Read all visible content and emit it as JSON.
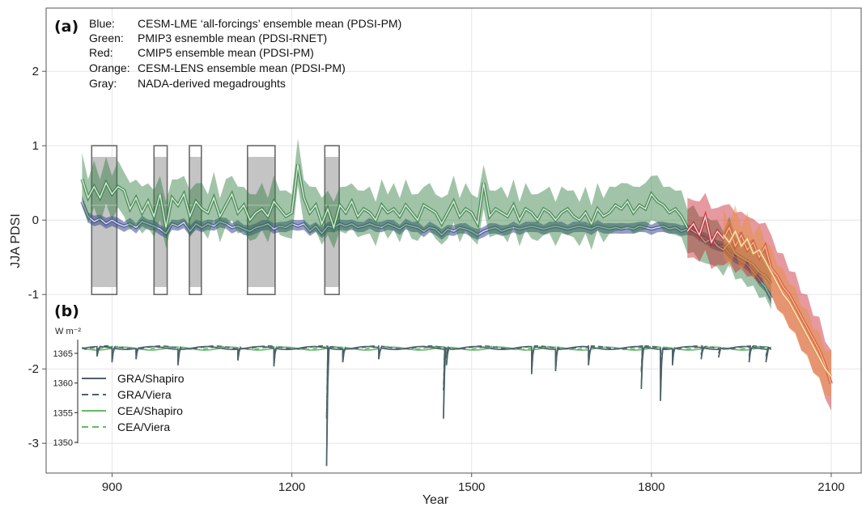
{
  "chart_data": [
    {
      "panel": "(a)",
      "type": "line",
      "xlabel": "Year",
      "ylabel": "JJA PDSI",
      "xlim": [
        790,
        2150
      ],
      "ylim": [
        -3.4,
        2.85
      ],
      "x_ticks": [
        900,
        1200,
        1500,
        1800,
        2100
      ],
      "y_ticks": [
        -3,
        -2,
        -1,
        0,
        1,
        2
      ],
      "grid": true,
      "legend_text": [
        {
          "key": "Blue:",
          "text": "CESM-LME ‘all-forcings’ ensemble mean (PDSI-PM)"
        },
        {
          "key": "Green:",
          "text": "PMIP3 esnemble mean (PDSI-RNET)"
        },
        {
          "key": "Red:",
          "text": "CMIP5 ensemble mean (PDSI-PM)"
        },
        {
          "key": "Orange:",
          "text": "CESM-LENS ensemble mean (PDSI-PM)"
        },
        {
          "key": "Gray:",
          "text": "NADA-derived megadroughts"
        }
      ],
      "series": [
        {
          "name": "Blue",
          "color": "#3b4a8f",
          "x": [
            850,
            860,
            870,
            880,
            890,
            900,
            910,
            920,
            930,
            940,
            950,
            960,
            970,
            980,
            990,
            1000,
            1010,
            1020,
            1030,
            1040,
            1050,
            1060,
            1070,
            1080,
            1090,
            1100,
            1110,
            1120,
            1130,
            1140,
            1150,
            1160,
            1170,
            1180,
            1190,
            1200,
            1210,
            1220,
            1230,
            1240,
            1250,
            1260,
            1270,
            1280,
            1290,
            1300,
            1310,
            1320,
            1330,
            1340,
            1350,
            1360,
            1370,
            1380,
            1390,
            1400,
            1410,
            1420,
            1430,
            1440,
            1450,
            1460,
            1470,
            1480,
            1490,
            1500,
            1510,
            1520,
            1530,
            1540,
            1550,
            1560,
            1570,
            1580,
            1590,
            1600,
            1610,
            1620,
            1630,
            1640,
            1650,
            1660,
            1670,
            1680,
            1690,
            1700,
            1710,
            1720,
            1730,
            1740,
            1750,
            1760,
            1770,
            1780,
            1790,
            1800,
            1810,
            1820,
            1830,
            1840,
            1850,
            1860,
            1870,
            1880,
            1890,
            1900,
            1910,
            1920,
            1930,
            1940,
            1950,
            1960,
            1970,
            1980,
            1990,
            2000
          ],
          "y": [
            0.25,
            0.05,
            -0.02,
            0.02,
            -0.05,
            0.0,
            -0.05,
            -0.08,
            -0.05,
            -0.1,
            -0.02,
            -0.05,
            -0.08,
            -0.12,
            -0.18,
            -0.05,
            -0.08,
            -0.03,
            -0.15,
            -0.05,
            -0.1,
            -0.05,
            -0.08,
            -0.02,
            -0.05,
            -0.1,
            -0.08,
            -0.12,
            -0.15,
            -0.1,
            -0.08,
            -0.05,
            -0.12,
            -0.08,
            -0.1,
            -0.05,
            -0.08,
            -0.05,
            -0.15,
            -0.08,
            -0.18,
            -0.08,
            -0.1,
            -0.05,
            -0.08,
            -0.05,
            -0.1,
            -0.08,
            -0.05,
            -0.08,
            -0.1,
            -0.05,
            -0.08,
            -0.12,
            -0.06,
            -0.08,
            -0.1,
            -0.15,
            -0.1,
            -0.12,
            -0.2,
            -0.12,
            -0.15,
            -0.1,
            -0.12,
            -0.15,
            -0.2,
            -0.15,
            -0.12,
            -0.1,
            -0.15,
            -0.12,
            -0.1,
            -0.12,
            -0.1,
            -0.08,
            -0.1,
            -0.12,
            -0.1,
            -0.08,
            -0.1,
            -0.12,
            -0.1,
            -0.08,
            -0.1,
            -0.12,
            -0.08,
            -0.1,
            -0.12,
            -0.1,
            -0.12,
            -0.1,
            -0.12,
            -0.08,
            -0.1,
            -0.12,
            -0.1,
            -0.08,
            -0.12,
            -0.1,
            -0.15,
            -0.12,
            -0.15,
            -0.2,
            -0.25,
            -0.3,
            -0.35,
            -0.35,
            -0.45,
            -0.5,
            -0.55,
            -0.6,
            -0.7,
            -0.8,
            -0.9,
            -1.05
          ]
        },
        {
          "name": "Green",
          "color": "#2e7d3e",
          "x": [
            850,
            860,
            870,
            880,
            890,
            900,
            910,
            920,
            930,
            940,
            950,
            960,
            970,
            980,
            990,
            1000,
            1010,
            1020,
            1030,
            1040,
            1050,
            1060,
            1070,
            1080,
            1090,
            1100,
            1110,
            1120,
            1130,
            1140,
            1150,
            1160,
            1170,
            1180,
            1190,
            1200,
            1210,
            1220,
            1230,
            1240,
            1250,
            1260,
            1270,
            1280,
            1290,
            1300,
            1310,
            1320,
            1330,
            1340,
            1350,
            1360,
            1370,
            1380,
            1390,
            1400,
            1410,
            1420,
            1430,
            1440,
            1450,
            1460,
            1470,
            1480,
            1490,
            1500,
            1510,
            1520,
            1530,
            1540,
            1550,
            1560,
            1570,
            1580,
            1590,
            1600,
            1610,
            1620,
            1630,
            1640,
            1650,
            1660,
            1670,
            1680,
            1690,
            1700,
            1710,
            1720,
            1730,
            1740,
            1750,
            1760,
            1770,
            1780,
            1790,
            1800,
            1810,
            1820,
            1830,
            1840,
            1850,
            1860,
            1870,
            1880,
            1890,
            1900,
            1910,
            1920,
            1930,
            1940,
            1950,
            1960,
            1970,
            1980,
            1990,
            2000
          ],
          "y": [
            0.55,
            0.3,
            0.45,
            0.3,
            0.5,
            0.35,
            0.45,
            0.4,
            0.15,
            0.3,
            0.1,
            0.25,
            0.05,
            0.35,
            -0.1,
            0.3,
            0.2,
            0.35,
            0.05,
            0.25,
            0.15,
            0.1,
            0.3,
            0.05,
            0.2,
            0.35,
            0.1,
            0.2,
            0.0,
            0.1,
            0.15,
            0.05,
            0.25,
            0.15,
            0.05,
            0.1,
            0.75,
            0.3,
            0.1,
            0.2,
            -0.05,
            0.15,
            -0.1,
            0.2,
            0.1,
            0.25,
            0.05,
            0.15,
            0.1,
            0.0,
            0.2,
            0.1,
            0.15,
            0.05,
            0.2,
            0.1,
            0.0,
            0.2,
            0.15,
            0.1,
            -0.05,
            0.1,
            0.25,
            0.05,
            0.15,
            0.1,
            -0.05,
            0.5,
            0.05,
            0.15,
            0.1,
            0.05,
            0.2,
            0.0,
            0.15,
            0.1,
            0.0,
            0.15,
            0.1,
            0.0,
            0.1,
            0.15,
            0.05,
            0.0,
            0.1,
            -0.05,
            0.15,
            0.05,
            0.1,
            0.2,
            0.15,
            0.25,
            0.1,
            0.2,
            0.15,
            0.35,
            0.25,
            0.2,
            0.1,
            0.15,
            0.05,
            -0.1,
            -0.15,
            -0.2,
            -0.3,
            -0.25,
            -0.35,
            -0.4,
            -0.3,
            -0.45,
            -0.5,
            -0.55,
            -0.6,
            -0.7,
            -0.75,
            -0.85
          ]
        },
        {
          "name": "Red",
          "color": "#c8202c",
          "x": [
            1860,
            1870,
            1880,
            1890,
            1900,
            1910,
            1920,
            1930,
            1940,
            1950,
            1960,
            1970,
            1980,
            1990,
            2000,
            2010,
            2020,
            2030,
            2040,
            2050,
            2060,
            2070,
            2080,
            2090,
            2100
          ],
          "y": [
            -0.15,
            -0.05,
            -0.2,
            0.05,
            -0.3,
            -0.15,
            -0.25,
            -0.1,
            -0.35,
            -0.2,
            -0.4,
            -0.3,
            -0.5,
            -0.35,
            -0.65,
            -0.75,
            -0.9,
            -1.0,
            -1.15,
            -1.3,
            -1.45,
            -1.6,
            -1.75,
            -1.95,
            -2.2
          ]
        },
        {
          "name": "Orange",
          "color": "#e6913a",
          "x": [
            1920,
            1930,
            1940,
            1950,
            1960,
            1970,
            1980,
            1990,
            2000,
            2010,
            2020,
            2030,
            2040,
            2050,
            2060,
            2070,
            2080,
            2090,
            2100
          ],
          "y": [
            -0.2,
            -0.3,
            -0.15,
            -0.35,
            -0.25,
            -0.45,
            -0.4,
            -0.55,
            -0.7,
            -0.85,
            -1.0,
            -1.1,
            -1.25,
            -1.4,
            -1.55,
            -1.7,
            -1.85,
            -2.0,
            -2.1
          ]
        }
      ],
      "megadroughts": [
        {
          "start": 866,
          "end": 908
        },
        {
          "start": 970,
          "end": 992
        },
        {
          "start": 1029,
          "end": 1049
        },
        {
          "start": 1126,
          "end": 1172
        },
        {
          "start": 1255,
          "end": 1279
        }
      ]
    },
    {
      "panel": "(b)",
      "type": "line",
      "ylabel": "W m⁻²",
      "y_ticks": [
        1350,
        1355,
        1360,
        1365
      ],
      "ylim": [
        1350,
        1367
      ],
      "xlim": [
        790,
        2150
      ],
      "legend": [
        {
          "name": "GRA/Shapiro",
          "color": "#4d5f6e",
          "dash": "solid"
        },
        {
          "name": "GRA/Viera",
          "color": "#4d5f6e",
          "dash": "dashed"
        },
        {
          "name": "CEA/Shapiro",
          "color": "#67b86a",
          "dash": "solid"
        },
        {
          "name": "CEA/Viera",
          "color": "#67b86a",
          "dash": "dashed"
        }
      ],
      "baseline": 1366.0,
      "volcanic_dips": [
        {
          "year": 875,
          "value": 1364.5
        },
        {
          "year": 900,
          "value": 1363.5
        },
        {
          "year": 940,
          "value": 1364.0
        },
        {
          "year": 1010,
          "value": 1363.0
        },
        {
          "year": 1110,
          "value": 1363.8
        },
        {
          "year": 1170,
          "value": 1362.8
        },
        {
          "year": 1258,
          "value": 1346.0
        },
        {
          "year": 1285,
          "value": 1363.5
        },
        {
          "year": 1345,
          "value": 1364.0
        },
        {
          "year": 1453,
          "value": 1354.0
        },
        {
          "year": 1458,
          "value": 1363.0
        },
        {
          "year": 1600,
          "value": 1361.5
        },
        {
          "year": 1640,
          "value": 1362.0
        },
        {
          "year": 1695,
          "value": 1363.0
        },
        {
          "year": 1783,
          "value": 1359.0
        },
        {
          "year": 1815,
          "value": 1357.0
        },
        {
          "year": 1835,
          "value": 1363.0
        },
        {
          "year": 1883,
          "value": 1364.0
        },
        {
          "year": 1912,
          "value": 1364.3
        },
        {
          "year": 1963,
          "value": 1363.5
        },
        {
          "year": 1991,
          "value": 1363.5
        }
      ]
    }
  ]
}
